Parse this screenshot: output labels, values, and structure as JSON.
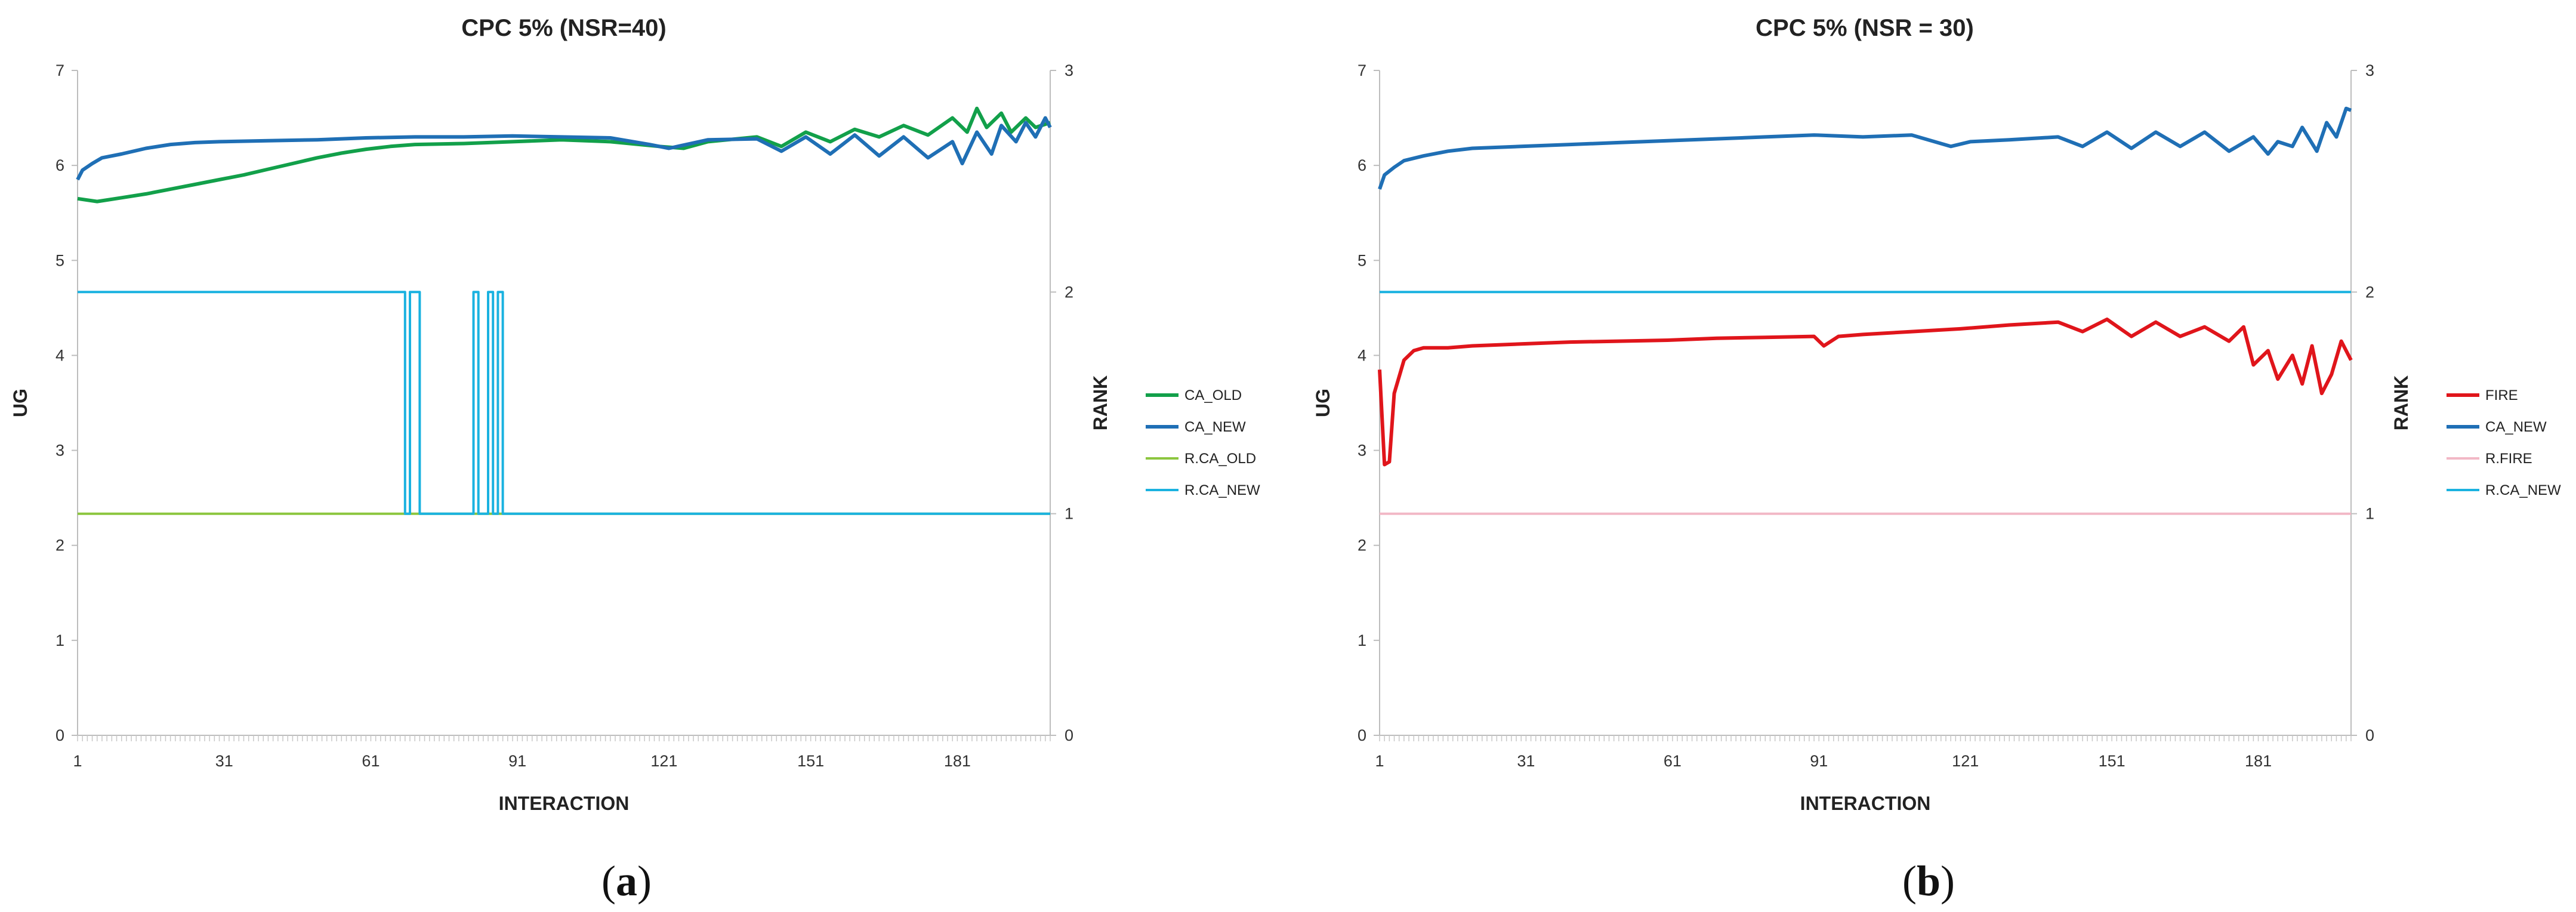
{
  "chart_data": [
    {
      "type": "line",
      "title": "CPC 5% (NSR=40)",
      "xlabel": "INTERACTION",
      "ylabel": "UG",
      "y2label": "RANK",
      "x_ticks": [
        "1",
        "31",
        "61",
        "91",
        "121",
        "151",
        "181"
      ],
      "y_ticks": [
        "0",
        "1",
        "2",
        "3",
        "4",
        "5",
        "6",
        "7"
      ],
      "y2_ticks": [
        "0",
        "1",
        "2",
        "3"
      ],
      "xlim": [
        1,
        200
      ],
      "ylim": [
        0,
        7
      ],
      "y2lim": [
        0,
        3
      ],
      "legend_position": "right",
      "caption": {
        "open": "(",
        "letter": "a",
        "close": ")"
      },
      "series": [
        {
          "name": "CA_OLD",
          "axis": "left",
          "color": "#12a04a",
          "x": [
            1,
            5,
            10,
            15,
            20,
            25,
            30,
            35,
            40,
            45,
            50,
            55,
            60,
            65,
            70,
            80,
            90,
            100,
            110,
            120,
            125,
            130,
            140,
            145,
            150,
            155,
            160,
            165,
            170,
            175,
            180,
            183,
            185,
            187,
            190,
            192,
            195,
            197,
            200
          ],
          "y": [
            5.65,
            5.62,
            5.66,
            5.7,
            5.75,
            5.8,
            5.85,
            5.9,
            5.96,
            6.02,
            6.08,
            6.13,
            6.17,
            6.2,
            6.22,
            6.23,
            6.25,
            6.27,
            6.25,
            6.2,
            6.18,
            6.25,
            6.3,
            6.2,
            6.35,
            6.25,
            6.38,
            6.3,
            6.42,
            6.32,
            6.5,
            6.35,
            6.6,
            6.4,
            6.55,
            6.35,
            6.5,
            6.4,
            6.45
          ]
        },
        {
          "name": "CA_NEW",
          "axis": "left",
          "color": "#1f6fb5",
          "x": [
            1,
            2,
            4,
            6,
            10,
            15,
            20,
            25,
            30,
            40,
            50,
            60,
            70,
            80,
            90,
            100,
            110,
            118,
            122,
            130,
            140,
            145,
            150,
            155,
            160,
            165,
            170,
            175,
            180,
            182,
            185,
            188,
            190,
            193,
            195,
            197,
            199,
            200
          ],
          "y": [
            5.85,
            5.95,
            6.02,
            6.08,
            6.12,
            6.18,
            6.22,
            6.24,
            6.25,
            6.26,
            6.27,
            6.29,
            6.3,
            6.3,
            6.31,
            6.3,
            6.29,
            6.22,
            6.18,
            6.27,
            6.28,
            6.15,
            6.3,
            6.12,
            6.32,
            6.1,
            6.3,
            6.08,
            6.25,
            6.02,
            6.35,
            6.12,
            6.42,
            6.25,
            6.45,
            6.3,
            6.5,
            6.4
          ]
        },
        {
          "name": "R.CA_OLD",
          "axis": "right",
          "color": "#8cc63f",
          "x": [
            1,
            200
          ],
          "y": [
            1,
            1
          ]
        },
        {
          "name": "R.CA_NEW",
          "axis": "right",
          "color": "#1ab2e0",
          "x": [
            1,
            68,
            68,
            69,
            69,
            71,
            71,
            72,
            72,
            82,
            82,
            83,
            83,
            84,
            84,
            85,
            85,
            86,
            86,
            87,
            87,
            88,
            88,
            200
          ],
          "y": [
            2,
            2,
            1,
            1,
            2,
            2,
            1,
            1,
            1,
            1,
            2,
            2,
            1,
            1,
            1,
            1,
            2,
            2,
            1,
            1,
            2,
            2,
            1,
            1
          ]
        }
      ]
    },
    {
      "type": "line",
      "title": "CPC 5% (NSR = 30)",
      "xlabel": "INTERACTION",
      "ylabel": "UG",
      "y2label": "RANK",
      "x_ticks": [
        "1",
        "31",
        "61",
        "91",
        "121",
        "151",
        "181"
      ],
      "y_ticks": [
        "0",
        "1",
        "2",
        "3",
        "4",
        "5",
        "6",
        "7"
      ],
      "y2_ticks": [
        "0",
        "1",
        "2",
        "3"
      ],
      "xlim": [
        1,
        200
      ],
      "ylim": [
        0,
        7
      ],
      "y2lim": [
        0,
        3
      ],
      "legend_position": "right",
      "caption": {
        "open": "(",
        "letter": "b",
        "close": ")"
      },
      "series": [
        {
          "name": "FIRE",
          "axis": "left",
          "color": "#e0151b",
          "x": [
            1,
            2,
            3,
            4,
            6,
            8,
            10,
            15,
            20,
            30,
            40,
            50,
            60,
            70,
            80,
            90,
            92,
            95,
            100,
            110,
            120,
            130,
            140,
            145,
            150,
            155,
            160,
            165,
            170,
            175,
            178,
            180,
            183,
            185,
            188,
            190,
            192,
            194,
            196,
            198,
            200
          ],
          "y": [
            3.85,
            2.85,
            2.88,
            3.6,
            3.95,
            4.05,
            4.08,
            4.08,
            4.1,
            4.12,
            4.14,
            4.15,
            4.16,
            4.18,
            4.19,
            4.2,
            4.1,
            4.2,
            4.22,
            4.25,
            4.28,
            4.32,
            4.35,
            4.25,
            4.38,
            4.2,
            4.35,
            4.2,
            4.3,
            4.15,
            4.3,
            3.9,
            4.05,
            3.75,
            4.0,
            3.7,
            4.1,
            3.6,
            3.8,
            4.15,
            3.95
          ]
        },
        {
          "name": "CA_NEW",
          "axis": "left",
          "color": "#1f6fb5",
          "x": [
            1,
            2,
            4,
            6,
            10,
            15,
            20,
            30,
            40,
            50,
            60,
            70,
            80,
            90,
            100,
            110,
            118,
            122,
            130,
            140,
            145,
            150,
            155,
            160,
            165,
            170,
            175,
            180,
            183,
            185,
            188,
            190,
            193,
            195,
            197,
            199,
            200
          ],
          "y": [
            5.75,
            5.9,
            5.98,
            6.05,
            6.1,
            6.15,
            6.18,
            6.2,
            6.22,
            6.24,
            6.26,
            6.28,
            6.3,
            6.32,
            6.3,
            6.32,
            6.2,
            6.25,
            6.27,
            6.3,
            6.2,
            6.35,
            6.18,
            6.35,
            6.2,
            6.35,
            6.15,
            6.3,
            6.12,
            6.25,
            6.2,
            6.4,
            6.15,
            6.45,
            6.3,
            6.6,
            6.58
          ]
        },
        {
          "name": "R.FIRE",
          "axis": "right",
          "color": "#f2b8c6",
          "x": [
            1,
            200
          ],
          "y": [
            1,
            1
          ]
        },
        {
          "name": "R.CA_NEW",
          "axis": "right",
          "color": "#1ab2e0",
          "x": [
            1,
            200
          ],
          "y": [
            2,
            2
          ]
        }
      ]
    }
  ]
}
